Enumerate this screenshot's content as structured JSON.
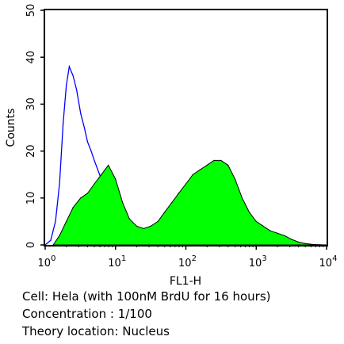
{
  "chart_data": {
    "type": "area",
    "title": "",
    "xlabel": "FL1-H",
    "ylabel": "Counts",
    "x_scale": "log",
    "xlim": [
      1,
      10000
    ],
    "ylim": [
      0,
      50
    ],
    "x_ticks": [
      {
        "value": 1,
        "base": "10",
        "exp": "0"
      },
      {
        "value": 10,
        "base": "10",
        "exp": "1"
      },
      {
        "value": 100,
        "base": "10",
        "exp": "2"
      },
      {
        "value": 1000,
        "base": "10",
        "exp": "3"
      },
      {
        "value": 10000,
        "base": "10",
        "exp": "4"
      }
    ],
    "y_ticks": [
      0,
      10,
      20,
      30,
      40,
      50
    ],
    "legend": "none",
    "grid": false,
    "series": [
      {
        "role": "control-outline",
        "color": "#0000ff",
        "fill": "none",
        "x": [
          1.0,
          1.2,
          1.4,
          1.6,
          1.8,
          2.0,
          2.2,
          2.5,
          2.8,
          3.2,
          3.6,
          4.0,
          4.5,
          5.0,
          5.6,
          6.3,
          7.1,
          8.0,
          9.0,
          10.0,
          11.2,
          12.6,
          14.1,
          15.8
        ],
        "y": [
          0,
          1,
          5,
          13,
          26,
          34,
          38,
          36,
          33,
          28,
          25,
          22,
          20,
          18,
          16,
          14,
          12,
          11,
          10,
          9,
          7,
          4,
          1.5,
          0
        ]
      },
      {
        "role": "sample-filled",
        "color": "#000000",
        "fill": "#00ff00",
        "x": [
          1.3,
          1.6,
          2.0,
          2.5,
          3.2,
          4.0,
          5.0,
          6.3,
          7.9,
          10,
          12.6,
          15.8,
          20,
          25,
          31.6,
          40,
          50,
          63,
          79,
          100,
          126,
          158,
          200,
          251,
          316,
          398,
          501,
          631,
          794,
          1000,
          1259,
          1585,
          1995,
          2512,
          3162,
          3981,
          5012,
          6310,
          7943,
          10000
        ],
        "y": [
          0,
          2,
          5,
          8,
          10,
          11,
          13,
          15,
          17,
          14,
          9,
          5.5,
          4,
          3.5,
          4,
          5,
          7,
          9,
          11,
          13,
          15,
          16,
          17,
          18,
          18,
          17,
          14,
          10,
          7,
          5,
          4,
          3,
          2.5,
          2,
          1.2,
          0.6,
          0.3,
          0.1,
          0.05,
          0
        ]
      }
    ]
  },
  "caption": {
    "line1": "Cell: Hela (with 100nM BrdU for 16 hours)",
    "line2": "Concentration : 1/100",
    "line3": "Theory location: Nucleus"
  }
}
